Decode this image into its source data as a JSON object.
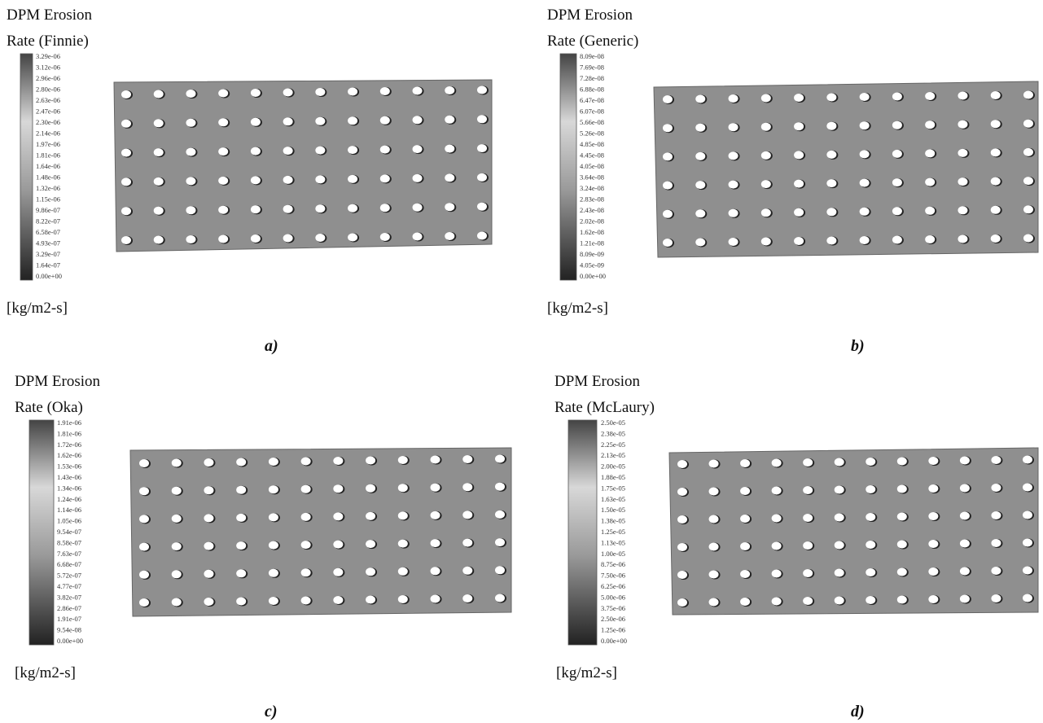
{
  "panels": [
    {
      "title_lines": [
        "DPM Erosion",
        "Rate (Finnie)"
      ],
      "colorbar_labels": [
        "3.29e-06",
        "3.12e-06",
        "2.96e-06",
        "2.80e-06",
        "2.63e-06",
        "2.47e-06",
        "2.30e-06",
        "2.14e-06",
        "1.97e-06",
        "1.81e-06",
        "1.64e-06",
        "1.48e-06",
        "1.32e-06",
        "1.15e-06",
        "9.86e-07",
        "8.22e-07",
        "6.58e-07",
        "4.93e-07",
        "3.29e-07",
        "1.64e-07",
        "0.00e+00"
      ],
      "units": "[kg/m2-s]",
      "caption": "a)"
    },
    {
      "title_lines": [
        "DPM Erosion",
        "Rate (Generic)"
      ],
      "colorbar_labels": [
        "8.09e-08",
        "7.69e-08",
        "7.28e-08",
        "6.88e-08",
        "6.47e-08",
        "6.07e-08",
        "5.66e-08",
        "5.26e-08",
        "4.85e-08",
        "4.45e-08",
        "4.05e-08",
        "3.64e-08",
        "3.24e-08",
        "2.83e-08",
        "2.43e-08",
        "2.02e-08",
        "1.62e-08",
        "1.21e-08",
        "8.09e-09",
        "4.05e-09",
        "0.00e+00"
      ],
      "units": "[kg/m2-s]",
      "caption": "b)"
    },
    {
      "title_lines": [
        "DPM Erosion",
        "Rate (Oka)"
      ],
      "colorbar_labels": [
        "1.91e-06",
        "1.81e-06",
        "1.72e-06",
        "1.62e-06",
        "1.53e-06",
        "1.43e-06",
        "1.34e-06",
        "1.24e-06",
        "1.14e-06",
        "1.05e-06",
        "9.54e-07",
        "8.58e-07",
        "7.63e-07",
        "6.68e-07",
        "5.72e-07",
        "4.77e-07",
        "3.82e-07",
        "2.86e-07",
        "1.91e-07",
        "9.54e-08",
        "0.00e+00"
      ],
      "units": "[kg/m2-s]",
      "caption": "c)"
    },
    {
      "title_lines": [
        "DPM Erosion",
        "Rate (McLaury)"
      ],
      "colorbar_labels": [
        "2.50e-05",
        "2.38e-05",
        "2.25e-05",
        "2.13e-05",
        "2.00e-05",
        "1.88e-05",
        "1.75e-05",
        "1.63e-05",
        "1.50e-05",
        "1.38e-05",
        "1.25e-05",
        "1.13e-05",
        "1.00e-05",
        "8.75e-06",
        "7.50e-06",
        "6.25e-06",
        "5.00e-06",
        "3.75e-06",
        "2.50e-06",
        "1.25e-06",
        "0.00e+00"
      ],
      "units": "[kg/m2-s]",
      "caption": "d)"
    }
  ]
}
